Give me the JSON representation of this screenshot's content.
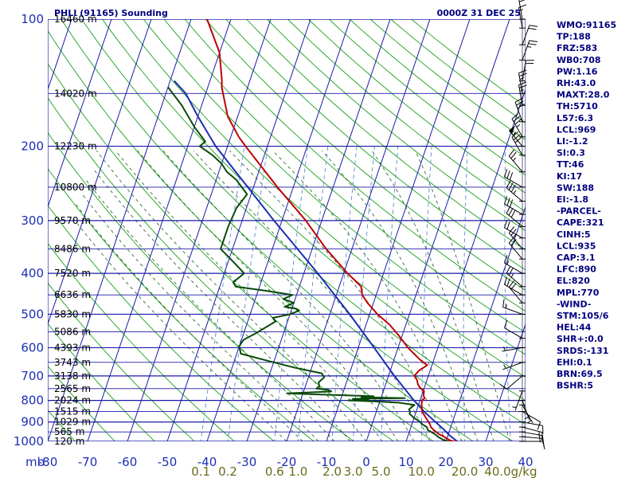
{
  "header": {
    "station": "PHLI (91165) Sounding",
    "datetime": "0000Z 31 DEC 25"
  },
  "colors": {
    "isobar": "#1a1aa8",
    "isotherm": "#1a1aa8",
    "dry_adiabat": "#19a019",
    "moist_adiabat": "#1e5a1e",
    "mixing_ratio": "#5a8ccc",
    "temperature": "#c00000",
    "dewpoint": "#0a4a0a",
    "parcel": "#1c2eb4",
    "wind_barb": "#000000",
    "index_text": "#000080"
  },
  "indices": [
    "WMO:91165",
    "TP:188",
    "FRZ:583",
    "WB0:708",
    "PW:1.16",
    "RH:43.0",
    "MAXT:28.0",
    "TH:5710",
    "L57:6.3",
    "LCL:969",
    "LI:-1.2",
    "SI:0.3",
    "TT:46",
    "KI:17",
    "SW:188",
    "EI:-1.8",
    "-PARCEL-",
    "CAPE:321",
    "CINH:5",
    "LCL:935",
    "CAP:3.1",
    "LFC:890",
    "EL:820",
    "MPL:770",
    "-WIND-",
    "STM:105/6",
    "HEL:44",
    "SHR+:0.0",
    "SRDS:-131",
    "EHI:0.1",
    "BRN:69.5",
    "BSHR:5"
  ],
  "chart_data": {
    "type": "skew-t log-p sounding",
    "y_axis": {
      "label": "mb",
      "scale": "log",
      "range": [
        1000,
        100
      ]
    },
    "x_axis": {
      "label": "",
      "range": [
        -80,
        40
      ]
    },
    "pressure_ticks": [
      "100",
      "200",
      "300",
      "400",
      "500",
      "600",
      "700",
      "800",
      "900",
      "1000"
    ],
    "temperature_ticks": [
      "-80",
      "-70",
      "-60",
      "-50",
      "-40",
      "-30",
      "-20",
      "-10",
      "0",
      "10",
      "20",
      "30",
      "40"
    ],
    "mixing_ratio_ticks": [
      "0.1",
      "0.2",
      "0.6",
      "1.0",
      "2.0",
      "3.0",
      "5.0",
      "10.0",
      "20.0",
      "40.0"
    ],
    "mixing_ratio_unit": "g/kg",
    "height_levels": [
      {
        "p": 1000,
        "label": "120 m"
      },
      {
        "p": 950,
        "label": "565 m"
      },
      {
        "p": 900,
        "label": "1029 m"
      },
      {
        "p": 850,
        "label": "1515 m"
      },
      {
        "p": 800,
        "label": "2024 m"
      },
      {
        "p": 750,
        "label": "2565 m"
      },
      {
        "p": 700,
        "label": "3138 m"
      },
      {
        "p": 650,
        "label": "3743 m"
      },
      {
        "p": 600,
        "label": "4393 m"
      },
      {
        "p": 550,
        "label": "5086 m"
      },
      {
        "p": 500,
        "label": "5830 m"
      },
      {
        "p": 450,
        "label": "6636 m"
      },
      {
        "p": 400,
        "label": "7520 m"
      },
      {
        "p": 350,
        "label": "8486 m"
      },
      {
        "p": 300,
        "label": "9570 m"
      },
      {
        "p": 250,
        "label": "10800 m"
      },
      {
        "p": 200,
        "label": "12230 m"
      },
      {
        "p": 150,
        "label": "14020 m"
      },
      {
        "p": 100,
        "label": "16460 m"
      }
    ],
    "temperature": [
      [
        1008,
        23.4
      ],
      [
        995,
        21
      ],
      [
        980,
        19.6
      ],
      [
        960,
        17.5
      ],
      [
        940,
        16
      ],
      [
        925,
        15
      ],
      [
        910,
        14.5
      ],
      [
        880,
        13
      ],
      [
        850,
        11.5
      ],
      [
        820,
        10.8
      ],
      [
        800,
        10.5
      ],
      [
        790,
        11
      ],
      [
        780,
        10.5
      ],
      [
        760,
        10.2
      ],
      [
        745,
        8.8
      ],
      [
        730,
        8
      ],
      [
        715,
        7.5
      ],
      [
        700,
        6.5
      ],
      [
        680,
        7.2
      ],
      [
        660,
        8.8
      ],
      [
        640,
        6.5
      ],
      [
        620,
        4.5
      ],
      [
        600,
        2.5
      ],
      [
        560,
        -1
      ],
      [
        530,
        -4
      ],
      [
        500,
        -8
      ],
      [
        470,
        -11.5
      ],
      [
        450,
        -13.5
      ],
      [
        430,
        -14.5
      ],
      [
        400,
        -19
      ],
      [
        350,
        -26.5
      ],
      [
        300,
        -34
      ],
      [
        250,
        -44
      ],
      [
        200,
        -55.5
      ],
      [
        190,
        -58
      ],
      [
        170,
        -62.5
      ],
      [
        145,
        -66.5
      ],
      [
        140,
        -67
      ],
      [
        120,
        -70
      ],
      [
        100,
        -76
      ]
    ],
    "dewpoint": [
      [
        1008,
        23
      ],
      [
        995,
        19.5
      ],
      [
        980,
        18
      ],
      [
        960,
        16.5
      ],
      [
        940,
        14.5
      ],
      [
        925,
        14
      ],
      [
        910,
        12.5
      ],
      [
        900,
        12
      ],
      [
        880,
        10
      ],
      [
        860,
        8.5
      ],
      [
        850,
        8.5
      ],
      [
        840,
        8
      ],
      [
        820,
        9
      ],
      [
        810,
        5
      ],
      [
        805,
        0
      ],
      [
        800,
        -8
      ],
      [
        797,
        -3
      ],
      [
        793,
        -7
      ],
      [
        790,
        6
      ],
      [
        786,
        -5
      ],
      [
        782,
        -2
      ],
      [
        770,
        -24
      ],
      [
        762,
        -13
      ],
      [
        755,
        -14
      ],
      [
        750,
        -17
      ],
      [
        740,
        -16.5
      ],
      [
        725,
        -17
      ],
      [
        705,
        -16
      ],
      [
        690,
        -17
      ],
      [
        670,
        -24
      ],
      [
        650,
        -30
      ],
      [
        620,
        -39
      ],
      [
        595,
        -40
      ],
      [
        575,
        -39.5
      ],
      [
        555,
        -37
      ],
      [
        520,
        -33
      ],
      [
        510,
        -34
      ],
      [
        500,
        -30
      ],
      [
        490,
        -28
      ],
      [
        485,
        -29
      ],
      [
        480,
        -32
      ],
      [
        470,
        -30
      ],
      [
        460,
        -33
      ],
      [
        450,
        -31
      ],
      [
        440,
        -38
      ],
      [
        430,
        -46
      ],
      [
        420,
        -47
      ],
      [
        400,
        -45
      ],
      [
        380,
        -48
      ],
      [
        350,
        -53
      ],
      [
        310,
        -53
      ],
      [
        280,
        -52.5
      ],
      [
        260,
        -51
      ],
      [
        240,
        -55
      ],
      [
        230,
        -58
      ],
      [
        220,
        -60
      ],
      [
        210,
        -63
      ],
      [
        200,
        -67
      ],
      [
        195,
        -66
      ],
      [
        180,
        -70
      ],
      [
        160,
        -75
      ],
      [
        145,
        -80
      ]
    ],
    "parcel": [
      [
        1008,
        23.4
      ],
      [
        969,
        20.5
      ],
      [
        935,
        18.3
      ],
      [
        890,
        15
      ],
      [
        850,
        12
      ],
      [
        800,
        8.5
      ],
      [
        700,
        1.5
      ],
      [
        600,
        -6
      ],
      [
        500,
        -15
      ],
      [
        400,
        -26.5
      ],
      [
        300,
        -42
      ],
      [
        200,
        -63
      ],
      [
        170,
        -70
      ],
      [
        150,
        -75
      ],
      [
        140,
        -79
      ]
    ],
    "winds": [
      {
        "p": 1000,
        "dir": 90,
        "spd": 10
      },
      {
        "p": 975,
        "dir": 95,
        "spd": 15
      },
      {
        "p": 950,
        "dir": 100,
        "spd": 15
      },
      {
        "p": 925,
        "dir": 105,
        "spd": 15
      },
      {
        "p": 900,
        "dir": 100,
        "spd": 10
      },
      {
        "p": 850,
        "dir": 120,
        "spd": 10
      },
      {
        "p": 820,
        "dir": 150,
        "spd": 5
      },
      {
        "p": 800,
        "dir": 160,
        "spd": 5
      },
      {
        "p": 760,
        "dir": 200,
        "spd": 5
      },
      {
        "p": 700,
        "dir": 230,
        "spd": 10
      },
      {
        "p": 650,
        "dir": 250,
        "spd": 5
      },
      {
        "p": 600,
        "dir": 260,
        "spd": 5
      },
      {
        "p": 570,
        "dir": 300,
        "spd": 10
      },
      {
        "p": 500,
        "dir": 290,
        "spd": 15
      },
      {
        "p": 470,
        "dir": 320,
        "spd": 20
      },
      {
        "p": 450,
        "dir": 300,
        "spd": 20
      },
      {
        "p": 430,
        "dir": 310,
        "spd": 25
      },
      {
        "p": 400,
        "dir": 300,
        "spd": 15
      },
      {
        "p": 370,
        "dir": 320,
        "spd": 20
      },
      {
        "p": 350,
        "dir": 320,
        "spd": 25
      },
      {
        "p": 330,
        "dir": 300,
        "spd": 20
      },
      {
        "p": 310,
        "dir": 310,
        "spd": 30
      },
      {
        "p": 290,
        "dir": 300,
        "spd": 30
      },
      {
        "p": 270,
        "dir": 310,
        "spd": 35
      },
      {
        "p": 250,
        "dir": 300,
        "spd": 30
      },
      {
        "p": 230,
        "dir": 320,
        "spd": 25
      },
      {
        "p": 210,
        "dir": 330,
        "spd": 30
      },
      {
        "p": 200,
        "dir": 320,
        "spd": 55
      },
      {
        "p": 190,
        "dir": 330,
        "spd": 35
      },
      {
        "p": 175,
        "dir": 340,
        "spd": 30
      },
      {
        "p": 160,
        "dir": 350,
        "spd": 25
      },
      {
        "p": 150,
        "dir": 350,
        "spd": 25
      },
      {
        "p": 140,
        "dir": 10,
        "spd": 20
      },
      {
        "p": 125,
        "dir": 20,
        "spd": 25
      },
      {
        "p": 115,
        "dir": 20,
        "spd": 20
      },
      {
        "p": 105,
        "dir": 350,
        "spd": 15
      },
      {
        "p": 100,
        "dir": 350,
        "spd": 20
      }
    ]
  }
}
